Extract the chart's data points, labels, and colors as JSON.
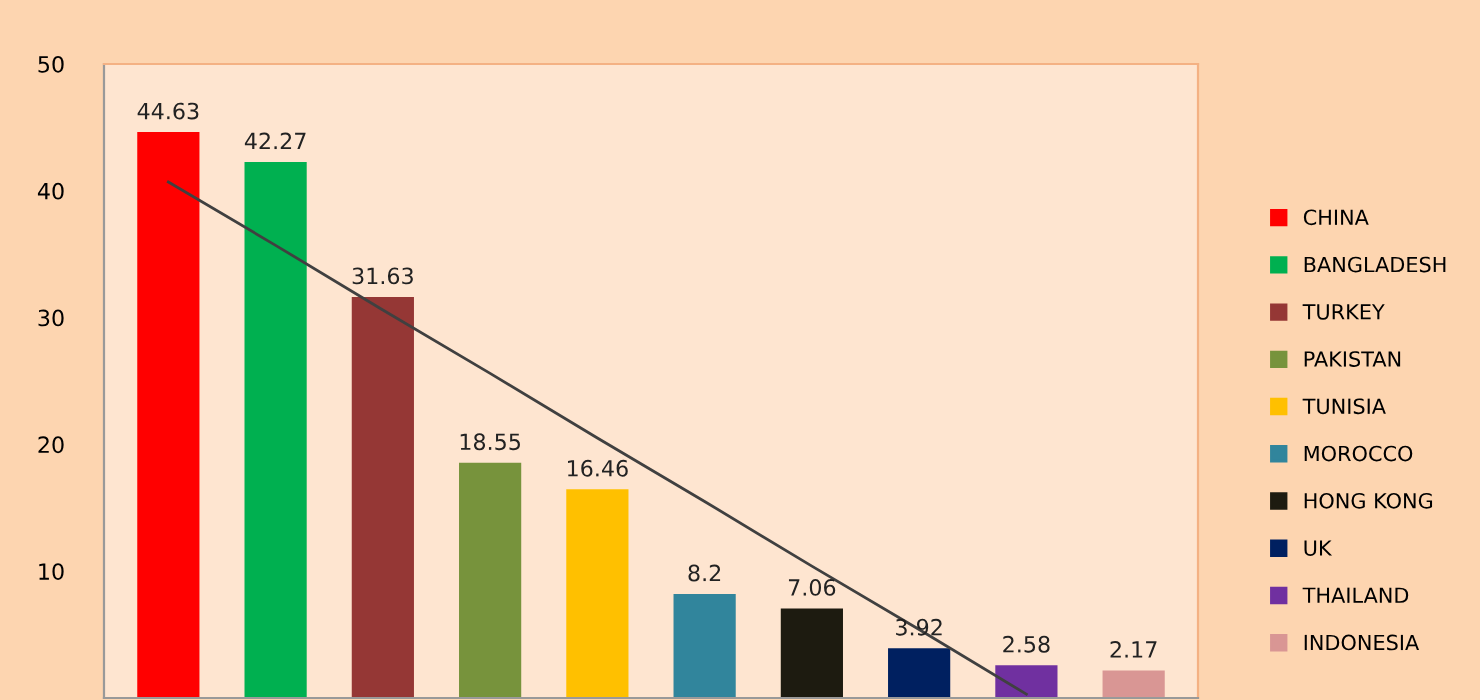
{
  "chart_data": {
    "type": "bar",
    "categories": [
      null,
      null,
      null,
      null,
      null,
      null,
      null,
      null,
      null,
      null
    ],
    "series": [
      {
        "name": "CHINA",
        "color": "#ff0000",
        "values": [
          44.63,
          null,
          null,
          null,
          null,
          null,
          null,
          null,
          null,
          null
        ],
        "value_labels": [
          "44.63",
          null,
          null,
          null,
          null,
          null,
          null,
          null,
          null,
          null
        ]
      },
      {
        "name": "BANGLADESH",
        "color": "#00b050",
        "values": [
          null,
          42.27,
          null,
          null,
          null,
          null,
          null,
          null,
          null,
          null
        ],
        "value_labels": [
          null,
          "42.27",
          null,
          null,
          null,
          null,
          null,
          null,
          null,
          null
        ]
      },
      {
        "name": "TURKEY",
        "color": "#953735",
        "values": [
          null,
          null,
          31.63,
          null,
          null,
          null,
          null,
          null,
          null,
          null
        ],
        "value_labels": [
          null,
          null,
          "31.63",
          null,
          null,
          null,
          null,
          null,
          null,
          null
        ]
      },
      {
        "name": "PAKISTAN",
        "color": "#77933c",
        "values": [
          null,
          null,
          null,
          18.55,
          null,
          null,
          null,
          null,
          null,
          null
        ],
        "value_labels": [
          null,
          null,
          null,
          "18.55",
          null,
          null,
          null,
          null,
          null,
          null
        ]
      },
      {
        "name": "TUNISIA",
        "color": "#ffc000",
        "values": [
          null,
          null,
          null,
          null,
          16.46,
          null,
          null,
          null,
          null,
          null
        ],
        "value_labels": [
          null,
          null,
          null,
          null,
          "16.46",
          null,
          null,
          null,
          null,
          null
        ]
      },
      {
        "name": "MOROCCO",
        "color": "#31859c",
        "values": [
          null,
          null,
          null,
          null,
          null,
          8.2,
          null,
          null,
          null,
          null
        ],
        "value_labels": [
          null,
          null,
          null,
          null,
          null,
          "8.2",
          null,
          null,
          null,
          null
        ]
      },
      {
        "name": "HONG KONG",
        "color": "#1d1b10",
        "values": [
          null,
          null,
          null,
          null,
          null,
          null,
          7.06,
          null,
          null,
          null
        ],
        "value_labels": [
          null,
          null,
          null,
          null,
          null,
          null,
          "7.06",
          null,
          null,
          null
        ]
      },
      {
        "name": "UK",
        "color": "#002060",
        "values": [
          null,
          null,
          null,
          null,
          null,
          null,
          null,
          3.92,
          null,
          null
        ],
        "value_labels": [
          null,
          null,
          null,
          null,
          null,
          null,
          null,
          "3.92",
          null,
          null
        ]
      },
      {
        "name": "THAILAND",
        "color": "#7030a0",
        "values": [
          null,
          null,
          null,
          null,
          null,
          null,
          null,
          null,
          2.58,
          null
        ],
        "value_labels": [
          null,
          null,
          null,
          null,
          null,
          null,
          null,
          null,
          "2.58",
          null
        ]
      },
      {
        "name": "INDONESIA",
        "color": "#d99694",
        "values": [
          null,
          null,
          null,
          null,
          null,
          null,
          null,
          null,
          null,
          2.17
        ],
        "value_labels": [
          null,
          null,
          null,
          null,
          null,
          null,
          null,
          null,
          null,
          "2.17"
        ]
      },
      {
        "type": "line",
        "color": "#404040",
        "values": [
          40.7,
          35.7,
          30.6,
          25.6,
          20.5,
          15.5,
          10.4,
          5.4,
          0.3,
          null
        ]
      }
    ],
    "ylim": [
      0,
      50
    ],
    "yticks": [
      10,
      20,
      30,
      40,
      50
    ],
    "tick_labels": "y",
    "legend": "right",
    "grid": false
  }
}
